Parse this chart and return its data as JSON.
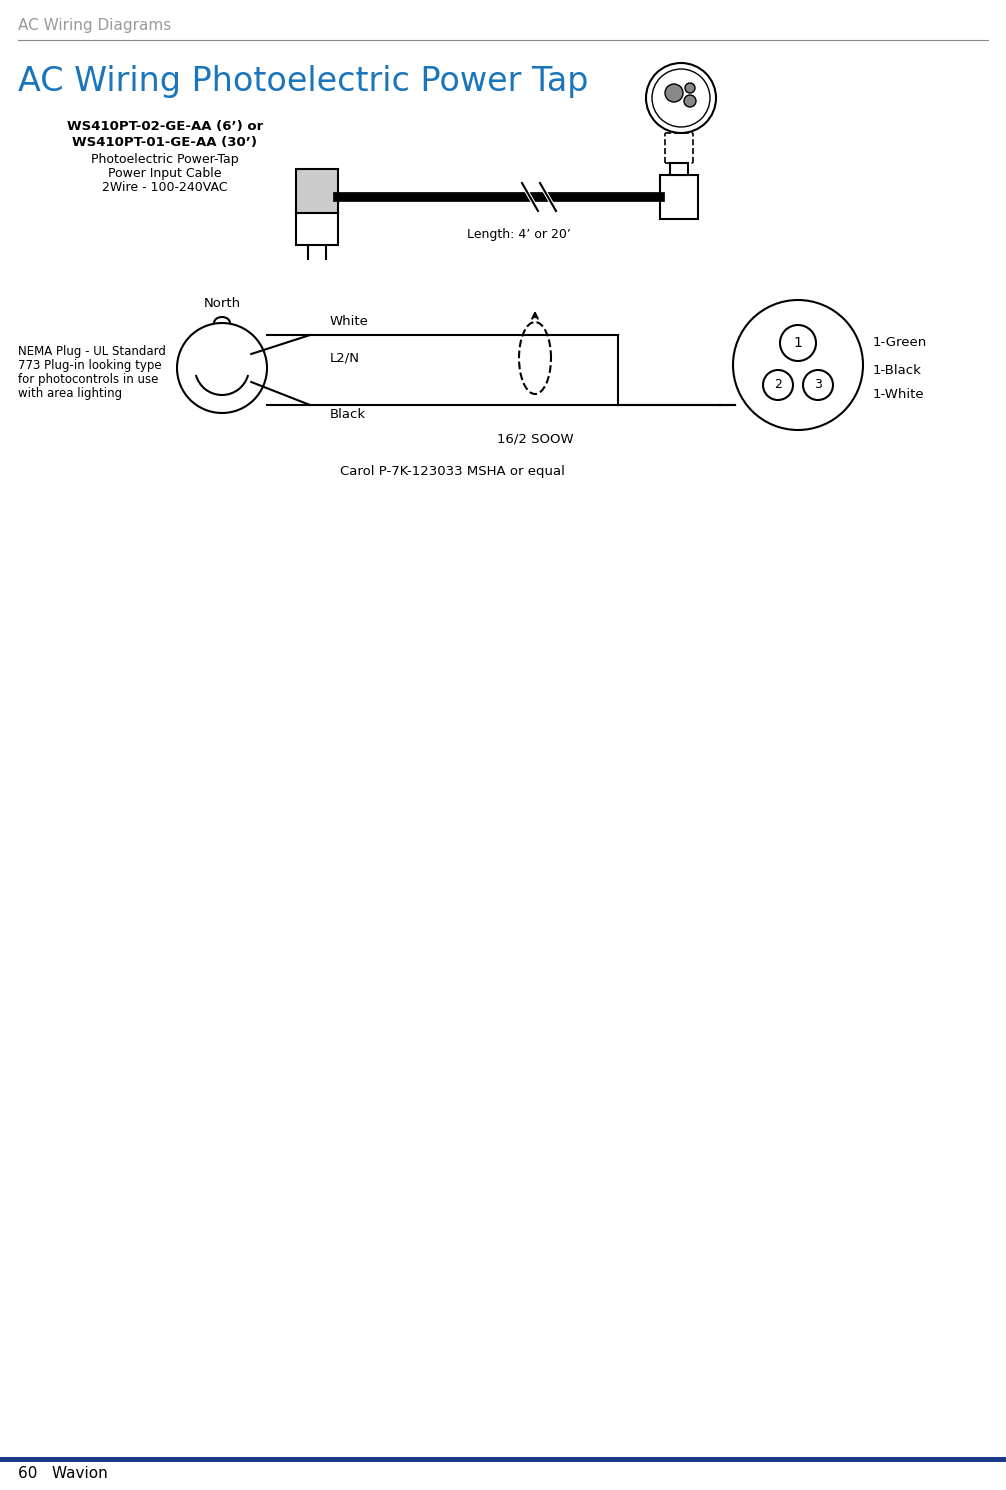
{
  "page_header": "AC Wiring Diagrams",
  "section_title": "AC Wiring Photoelectric Power Tap",
  "section_title_color": "#1B75BB",
  "header_line_color": "#555555",
  "footer_line_color": "#1A3A8C",
  "footer_text": "60   Wavion",
  "bg_color": "#FFFFFF",
  "diagram1": {
    "line1": "WS410PT-02-GE-AA (6’) or",
    "line2": "WS410PT-01-GE-AA (30’)",
    "line3": "Photoelectric Power-Tap",
    "line4": "Power Input Cable",
    "line5": "2Wire - 100-240VAC",
    "length_label": "Length: 4’ or 20’"
  },
  "diagram2": {
    "white": "White",
    "l2n": "L2/N",
    "black": "Black",
    "north": "North",
    "soow": "16/2 SOOW",
    "carol": "Carol P-7K-123033 MSHA or equal",
    "nema_line1": "NEMA Plug - UL Standard",
    "nema_line2": "773 Plug-in looking type",
    "nema_line3": "for photocontrols in use",
    "nema_line4": "with area lighting",
    "pin1": "1-Green",
    "pin2": "1-Black",
    "pin3": "1-White"
  }
}
